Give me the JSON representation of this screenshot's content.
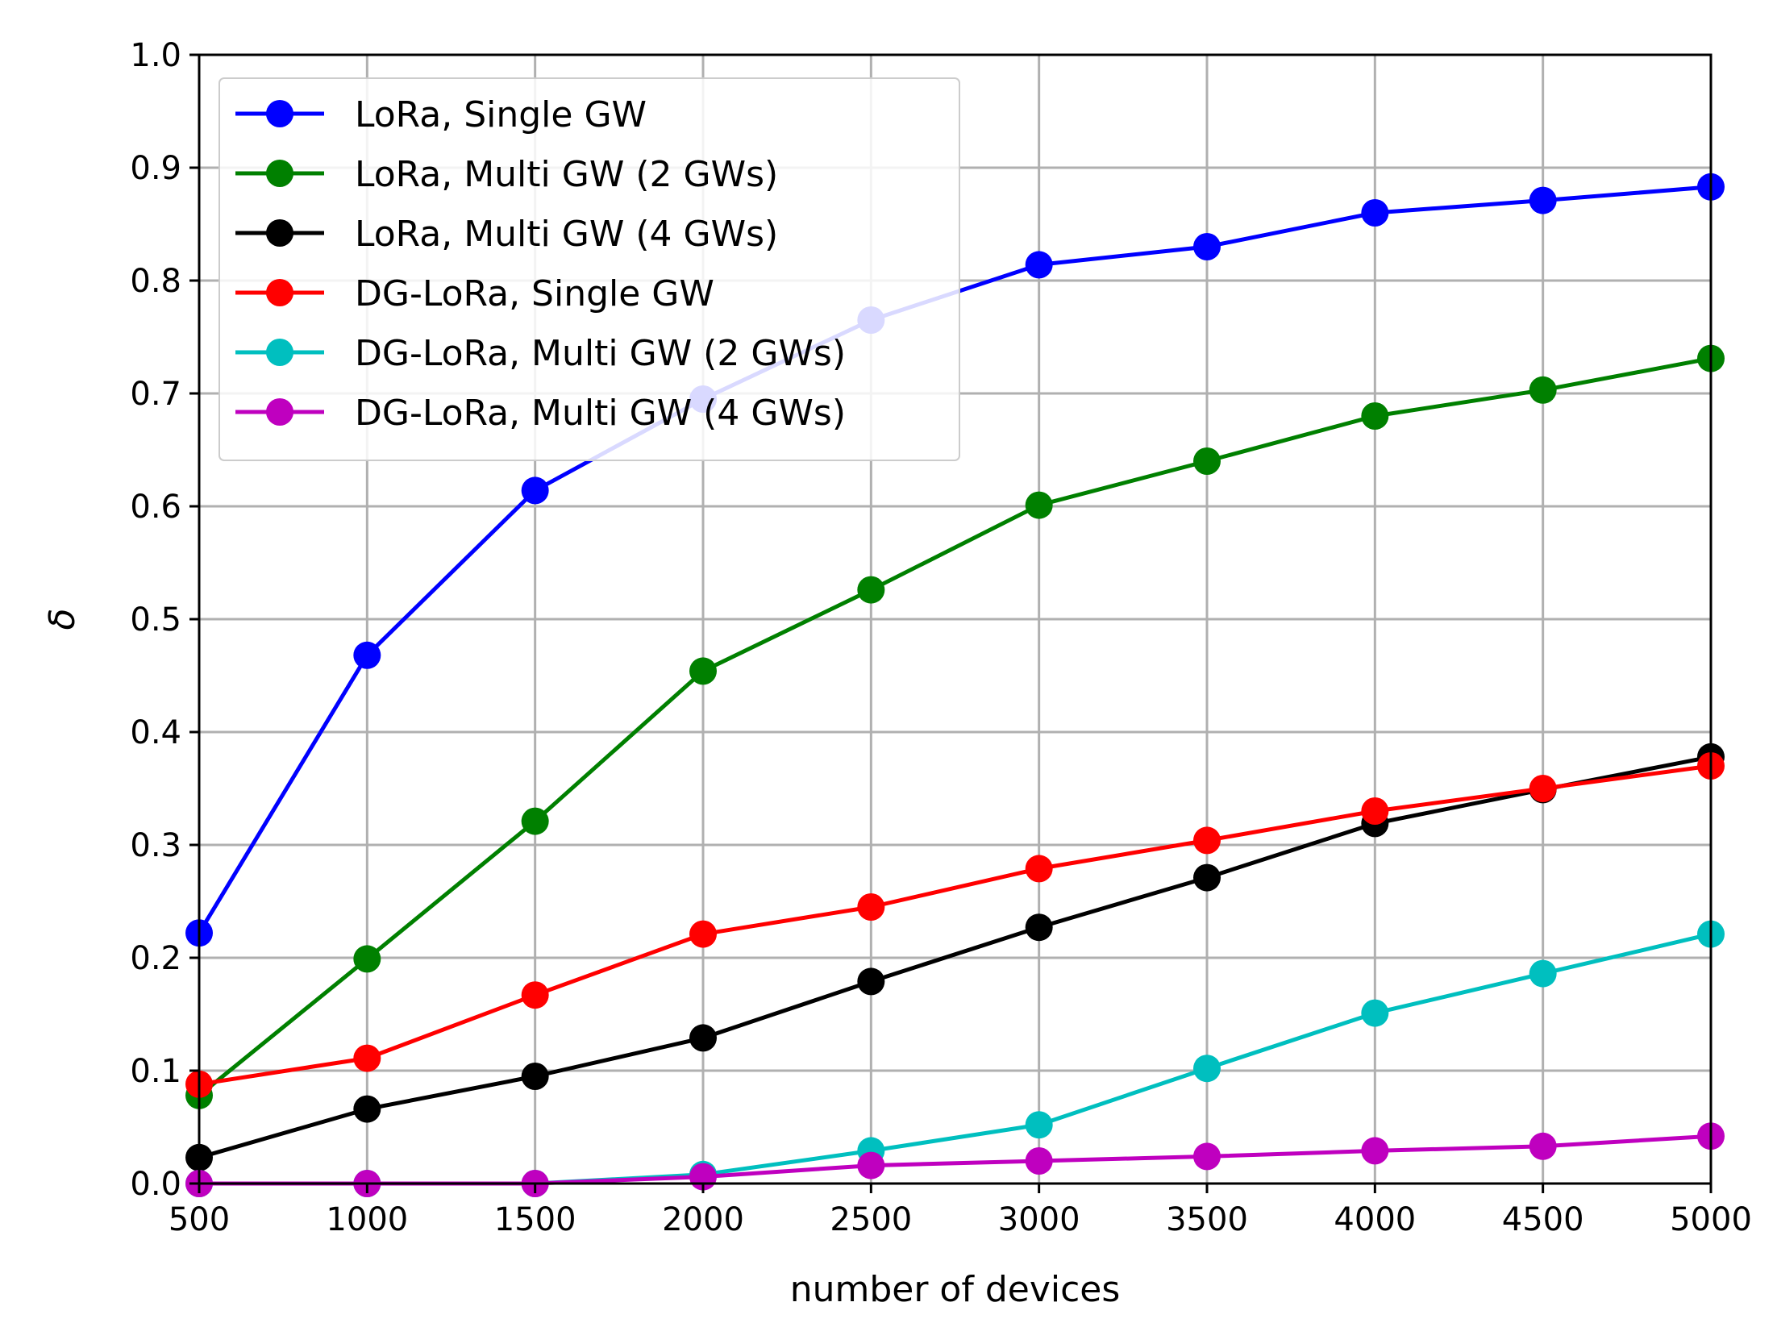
{
  "chart_data": {
    "type": "line",
    "title": "",
    "xlabel": "number of devices",
    "ylabel": "δ",
    "x": [
      500,
      1000,
      1500,
      2000,
      2500,
      3000,
      3500,
      4000,
      4500,
      5000
    ],
    "xlim": [
      500,
      5000
    ],
    "ylim": [
      0.0,
      1.0
    ],
    "xticks": [
      "500",
      "1000",
      "1500",
      "2000",
      "2500",
      "3000",
      "3500",
      "4000",
      "4500",
      "5000"
    ],
    "yticks": [
      "0.0",
      "0.1",
      "0.2",
      "0.3",
      "0.4",
      "0.5",
      "0.6",
      "0.7",
      "0.8",
      "0.9",
      "1.0"
    ],
    "grid": true,
    "legend_position": "top-left",
    "series": [
      {
        "name": "LoRa, Single GW",
        "color": "#0000ff",
        "values": [
          0.222,
          0.468,
          0.614,
          0.695,
          0.765,
          0.814,
          0.83,
          0.86,
          0.871,
          0.883
        ]
      },
      {
        "name": "LoRa, Multi GW (2 GWs)",
        "color": "#008000",
        "values": [
          0.078,
          0.199,
          0.321,
          0.454,
          0.526,
          0.601,
          0.64,
          0.68,
          0.703,
          0.731
        ]
      },
      {
        "name": "LoRa, Multi GW (4 GWs)",
        "color": "#000000",
        "values": [
          0.023,
          0.066,
          0.095,
          0.129,
          0.179,
          0.227,
          0.271,
          0.319,
          0.349,
          0.378
        ]
      },
      {
        "name": "DG-LoRa, Single GW",
        "color": "#ff0000",
        "values": [
          0.088,
          0.111,
          0.167,
          0.221,
          0.245,
          0.279,
          0.304,
          0.33,
          0.35,
          0.37
        ]
      },
      {
        "name": "DG-LoRa, Multi GW (2 GWs)",
        "color": "#00bfbf",
        "values": [
          0.0,
          0.0,
          0.0,
          0.008,
          0.029,
          0.052,
          0.102,
          0.151,
          0.186,
          0.221
        ]
      },
      {
        "name": "DG-LoRa, Multi GW (4 GWs)",
        "color": "#bf00bf",
        "values": [
          0.0,
          0.0,
          0.0,
          0.006,
          0.016,
          0.02,
          0.024,
          0.029,
          0.033,
          0.042
        ]
      }
    ]
  }
}
